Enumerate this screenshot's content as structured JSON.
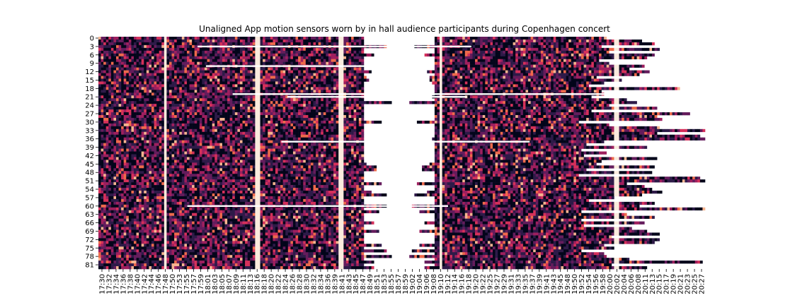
{
  "chart_data": {
    "type": "heatmap",
    "title": "Unaligned App motion sensors worn by in hall audience participants during Copenhagen concert",
    "xlabel": "",
    "ylabel": "",
    "y_tick_labels": [
      "0",
      "3",
      "6",
      "9",
      "12",
      "15",
      "18",
      "21",
      "24",
      "27",
      "30",
      "33",
      "36",
      "39",
      "42",
      "45",
      "48",
      "51",
      "54",
      "57",
      "60",
      "63",
      "66",
      "69",
      "72",
      "75",
      "78",
      "81"
    ],
    "x_tick_labels": [
      "17:30",
      "17:32",
      "17:34",
      "17:36",
      "17:38",
      "17:40",
      "17:42",
      "17:44",
      "17:46",
      "17:48",
      "17:50",
      "17:53",
      "17:55",
      "17:57",
      "17:59",
      "18:01",
      "18:03",
      "18:05",
      "18:07",
      "18:09",
      "18:11",
      "18:13",
      "18:16",
      "18:18",
      "18:20",
      "18:22",
      "18:24",
      "18:26",
      "18:28",
      "18:30",
      "18:32",
      "18:34",
      "18:36",
      "18:39",
      "18:41",
      "18:43",
      "18:45",
      "18:47",
      "18:49",
      "18:51",
      "18:53",
      "18:55",
      "18:57",
      "18:59",
      "19:02",
      "19:04",
      "19:06",
      "19:08",
      "19:10",
      "19:12",
      "19:14",
      "19:16",
      "19:18",
      "19:20",
      "19:22",
      "19:25",
      "19:27",
      "19:29",
      "19:31",
      "19:33",
      "19:35",
      "19:37",
      "19:39",
      "19:41",
      "19:43",
      "19:45",
      "19:48",
      "19:50",
      "19:52",
      "19:54",
      "19:56",
      "19:58",
      "20:00",
      "20:02",
      "20:04",
      "20:06",
      "20:08",
      "20:11",
      "20:13",
      "20:15",
      "20:17",
      "20:19",
      "20:21",
      "20:23",
      "20:25",
      "20:27"
    ],
    "n_participants": 83,
    "gaps": [
      {
        "from": "18:45",
        "to": "19:08",
        "note": "most participants missing data"
      }
    ],
    "colormap": [
      "#03051a",
      "#2e1a48",
      "#641c5c",
      "#9e1f5e",
      "#d5305a",
      "#ee6a4b",
      "#f6b48f",
      "#faebdd"
    ],
    "background_color": "#ffffff",
    "colorbar": false,
    "grid": false
  }
}
